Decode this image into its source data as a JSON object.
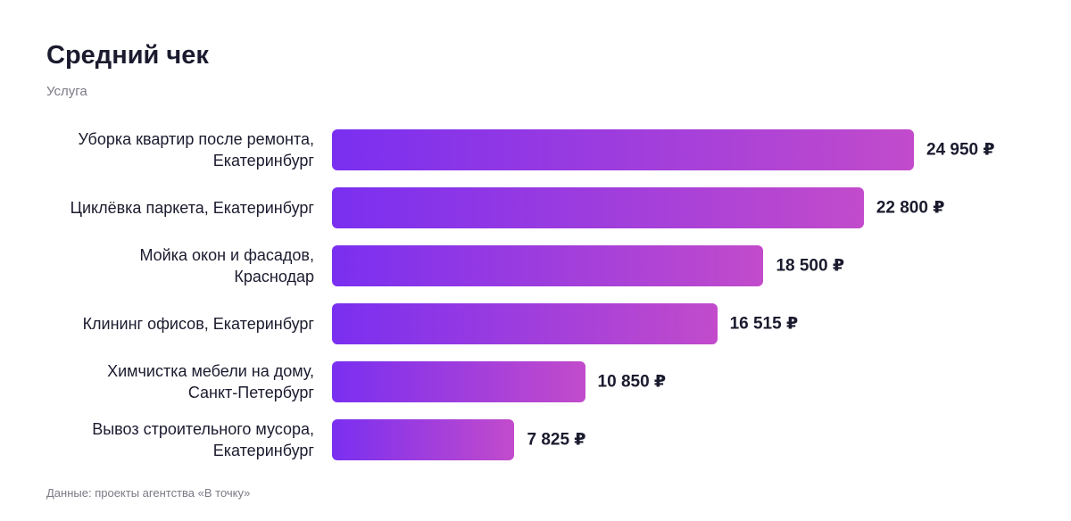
{
  "chart_data": {
    "type": "bar",
    "orientation": "horizontal",
    "title": "Средний чек",
    "subtitle": "Услуга",
    "categories": [
      "Уборка квартир после ремонта,\nЕкатеринбург",
      "Циклёвка паркета, Екатеринбург",
      "Мойка окон и фасадов,\nКраснодар",
      "Клининг офисов, Екатеринбург",
      "Химчистка мебели на дому,\nСанкт-Петербург",
      "Вывоз строительного мусора,\nЕкатеринбург"
    ],
    "values": [
      24950,
      22800,
      18500,
      16515,
      10850,
      7825
    ],
    "value_labels": [
      "24 950 ₽",
      "22 800 ₽",
      "18 500 ₽",
      "16 515 ₽",
      "10 850 ₽",
      "7 825 ₽"
    ],
    "color": [
      "#7a2ff0",
      "#c24bcb"
    ],
    "source": "Данные: проекты агентства «В точку»"
  }
}
